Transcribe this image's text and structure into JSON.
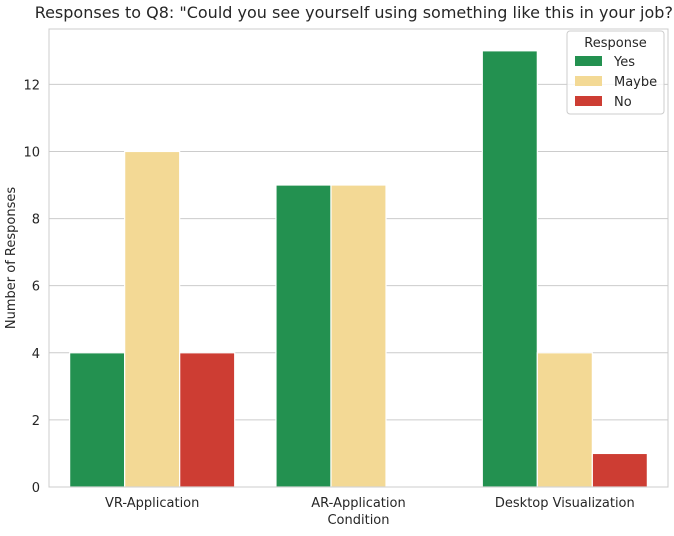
{
  "chart_data": {
    "type": "bar",
    "title": "Responses to Q8: \"Could you see yourself using something like this in your job?\"",
    "xlabel": "Condition",
    "ylabel": "Number of Responses",
    "categories": [
      "VR-Application",
      "AR-Application",
      "Desktop Visualization"
    ],
    "series": [
      {
        "name": "Yes",
        "color": "#239150",
        "values": [
          4,
          9,
          13
        ]
      },
      {
        "name": "Maybe",
        "color": "#f3d995",
        "values": [
          10,
          9,
          4
        ]
      },
      {
        "name": "No",
        "color": "#cd3d33",
        "values": [
          4,
          0,
          1
        ]
      }
    ],
    "ylim": [
      0,
      13.65
    ],
    "yticks": [
      0,
      2,
      4,
      6,
      8,
      10,
      12
    ],
    "grid": "horizontal",
    "legend": {
      "title": "Response",
      "placement": "top-right"
    }
  }
}
